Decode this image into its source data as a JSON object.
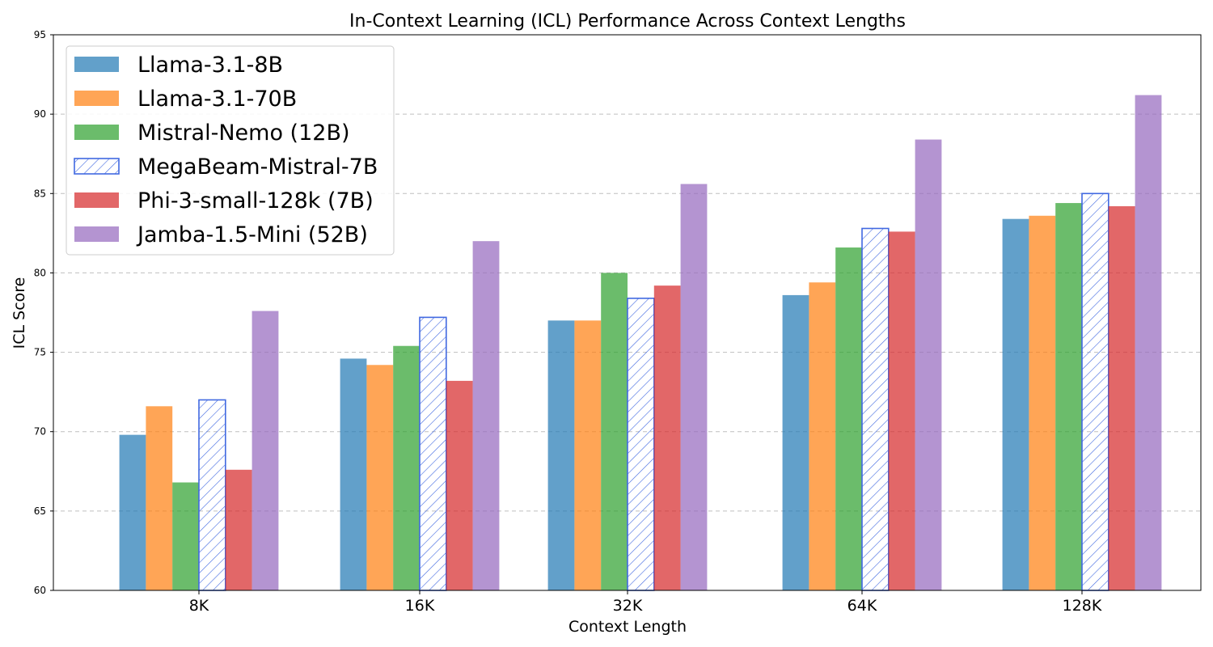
{
  "chart_data": {
    "type": "bar",
    "title": "In-Context Learning (ICL) Performance Across Context Lengths",
    "xlabel": "Context Length",
    "ylabel": "ICL Score",
    "ylim": [
      60,
      95
    ],
    "yticks": [
      60,
      65,
      70,
      75,
      80,
      85,
      90,
      95
    ],
    "grid": "y-dashed",
    "legend_position": "top-left",
    "categories": [
      "8K",
      "16K",
      "32K",
      "64K",
      "128K"
    ],
    "series": [
      {
        "name": "Llama-3.1-8B",
        "color": "#1f77b4",
        "style": "solid",
        "values": [
          69.8,
          74.6,
          77.0,
          78.6,
          83.4
        ]
      },
      {
        "name": "Llama-3.1-70B",
        "color": "#ff7f0e",
        "style": "solid",
        "values": [
          71.6,
          74.2,
          77.0,
          79.4,
          83.6
        ]
      },
      {
        "name": "Mistral-Nemo (12B)",
        "color": "#2ca02c",
        "style": "solid",
        "values": [
          66.8,
          75.4,
          80.0,
          81.6,
          84.4
        ]
      },
      {
        "name": "MegaBeam-Mistral-7B",
        "color": "#4169e1",
        "style": "hatched",
        "values": [
          72.0,
          77.2,
          78.4,
          82.8,
          85.0
        ]
      },
      {
        "name": "Phi-3-small-128k (7B)",
        "color": "#d62728",
        "style": "solid",
        "values": [
          67.6,
          73.2,
          79.2,
          82.6,
          84.2
        ]
      },
      {
        "name": "Jamba-1.5-Mini (52B)",
        "color": "#9467bd",
        "style": "solid",
        "values": [
          77.6,
          82.0,
          85.6,
          88.4,
          91.2
        ]
      }
    ]
  }
}
